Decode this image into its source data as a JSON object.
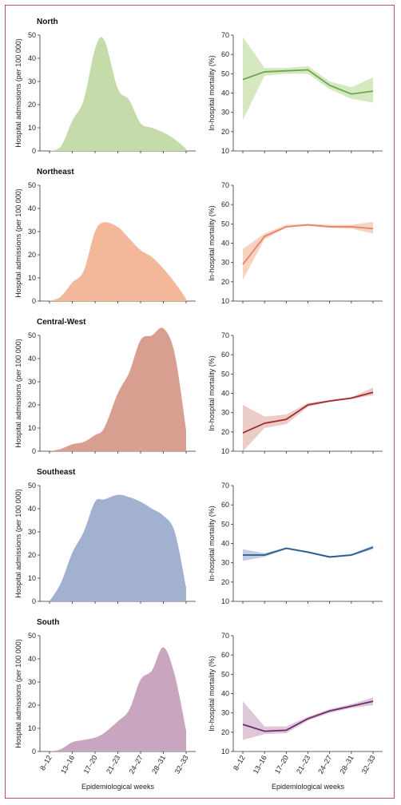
{
  "chart_data": {
    "type": "area",
    "x_categories": [
      "8–12",
      "13–16",
      "17–20",
      "21–23",
      "24–27",
      "28–31",
      "32–33"
    ],
    "xlabel": "Epidemiological weeks",
    "left_ylabel": "Hospital admissions (per 100 000)",
    "right_ylabel": "In-hospital mortality (%)",
    "left_ylim": [
      0,
      50
    ],
    "left_yticks": [
      0,
      10,
      20,
      30,
      40,
      50
    ],
    "right_ylim": [
      10,
      70
    ],
    "right_yticks": [
      10,
      20,
      30,
      40,
      50,
      60,
      70
    ],
    "admissions_x": [
      0,
      0.5,
      1,
      1.5,
      2,
      2.4,
      3,
      3.5,
      4,
      4.5,
      5,
      5.5,
      6
    ],
    "regions": [
      {
        "name": "North",
        "fill": "#c5dcaa",
        "line": "#6aa84f",
        "band": "#d6e8c0",
        "admissions": [
          0,
          2,
          13,
          22,
          44,
          48,
          27,
          22,
          12,
          10,
          8,
          5,
          1
        ],
        "mortality": [
          47,
          51,
          51.5,
          52,
          44,
          39.5,
          41
        ],
        "mortality_low": [
          26,
          49,
          50,
          50,
          42,
          37,
          35
        ],
        "mortality_high": [
          69,
          53,
          53,
          54,
          46,
          43,
          48
        ]
      },
      {
        "name": "Northeast",
        "fill": "#f2b899",
        "line": "#e8846a",
        "band": "#f7d4c2",
        "admissions": [
          0,
          2,
          8,
          13,
          30,
          34,
          32,
          27,
          22,
          19,
          14,
          8,
          1
        ],
        "mortality": [
          29,
          43.5,
          48.5,
          49.5,
          48.5,
          48.5,
          47.5
        ],
        "mortality_low": [
          21,
          42,
          48,
          49,
          48,
          47.5,
          45
        ],
        "mortality_high": [
          37,
          45,
          49.5,
          50,
          49.5,
          49.5,
          51
        ]
      },
      {
        "name": "Central-West",
        "fill": "#d89e90",
        "line": "#a4282e",
        "band": "#eacdc6",
        "admissions": [
          0,
          1,
          3,
          4,
          7,
          10,
          25,
          34,
          48,
          50,
          53,
          42,
          9
        ],
        "mortality": [
          19.5,
          24.5,
          26.5,
          34,
          36,
          37.5,
          40.5
        ],
        "mortality_low": [
          10,
          22,
          24,
          33,
          35.5,
          37,
          39
        ],
        "mortality_high": [
          34,
          28,
          29,
          35,
          36.5,
          38,
          43
        ]
      },
      {
        "name": "Southeast",
        "fill": "#a3b1d1",
        "line": "#285a8c",
        "band": "#c3cde3",
        "admissions": [
          0,
          8,
          21,
          30,
          43,
          44,
          46,
          45,
          43,
          40,
          37,
          30,
          6
        ],
        "mortality": [
          34,
          34,
          37.5,
          35.5,
          33,
          34,
          38
        ],
        "mortality_low": [
          31,
          33,
          37,
          35,
          32.5,
          33.5,
          37
        ],
        "mortality_high": [
          37,
          35,
          38,
          36,
          33.5,
          34.5,
          39
        ]
      },
      {
        "name": "South",
        "fill": "#c9a6bf",
        "line": "#6c2a6e",
        "band": "#dec7d7",
        "admissions": [
          0,
          1,
          4,
          5,
          6,
          8,
          13,
          18,
          31,
          35,
          45,
          33,
          9
        ],
        "mortality": [
          24,
          20.5,
          21,
          27,
          31,
          33.5,
          36
        ],
        "mortality_low": [
          16,
          19,
          19.5,
          26,
          30,
          32.5,
          34
        ],
        "mortality_high": [
          36,
          23,
          23,
          28,
          32,
          34.5,
          38
        ]
      }
    ]
  }
}
